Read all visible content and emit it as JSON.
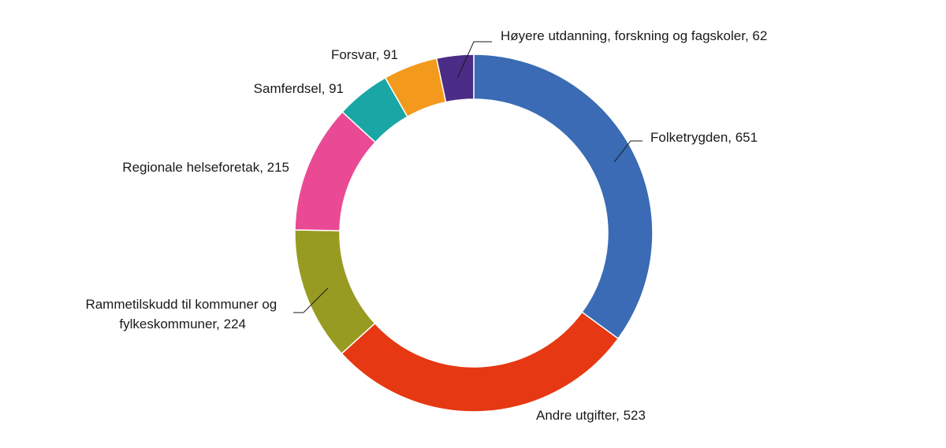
{
  "chart_data": {
    "type": "pie",
    "variant": "donut",
    "title": "",
    "slices": [
      {
        "label": "Folketrygden, 651",
        "name": "Folketrygden",
        "value": 651,
        "color": "#3a6bb4"
      },
      {
        "label": "Andre utgifter, 523",
        "name": "Andre utgifter",
        "value": 523,
        "color": "#e63812"
      },
      {
        "label": "Rammetilskudd til kommuner og fylkeskommuner, 224",
        "name": "Rammetilskudd til kommuner og fylkeskommuner",
        "value": 224,
        "color": "#989b21"
      },
      {
        "label": "Regionale helseforetak, 215",
        "name": "Regionale helseforetak",
        "value": 215,
        "color": "#ea4a93"
      },
      {
        "label": "Samferdsel, 91",
        "name": "Samferdsel",
        "value": 91,
        "color": "#1aa6a4"
      },
      {
        "label": "Forsvar, 91",
        "name": "Forsvar",
        "value": 91,
        "color": "#f39a1c"
      },
      {
        "label": "Høyere utdanning, forskning og fagskoler, 62",
        "name": "Høyere utdanning, forskning og fagskoler",
        "value": 62,
        "color": "#4b2c86"
      }
    ],
    "start_angle": "12 o'clock",
    "direction": "clockwise"
  }
}
